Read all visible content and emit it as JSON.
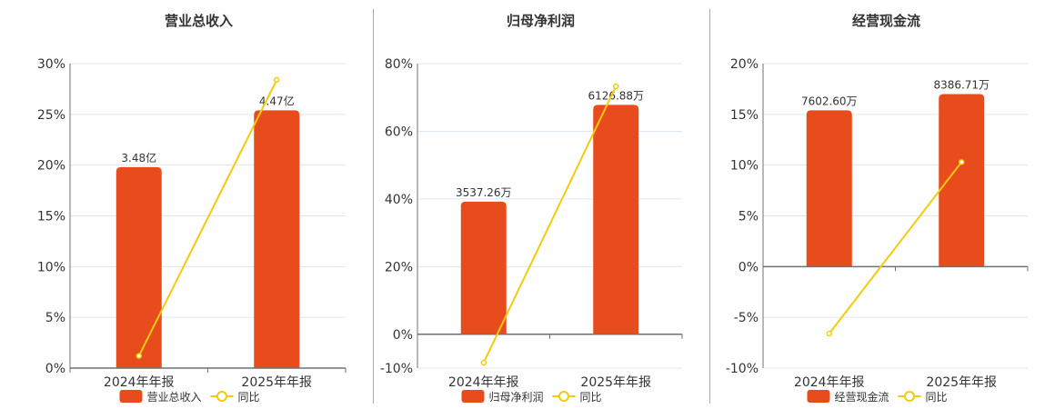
{
  "colors": {
    "bar": "#E84C1C",
    "line": "#F2CC0C",
    "grid": "#E0E6F1",
    "axis": "#6E7079",
    "divider": "#AAAAAA"
  },
  "chart_data": [
    {
      "type": "bar+line",
      "title": "营业总收入",
      "categories": [
        "2024年年报",
        "2025年年报"
      ],
      "ylim": [
        0,
        30
      ],
      "yticks": [
        0,
        5,
        10,
        15,
        20,
        25,
        30
      ],
      "ytick_labels": [
        "0%",
        "5%",
        "10%",
        "15%",
        "20%",
        "25%",
        "30%"
      ],
      "bar_series": {
        "name": "营业总收入",
        "labels": [
          "3.48亿",
          "4.47亿"
        ],
        "axis_values": [
          19.8,
          25.4
        ]
      },
      "line_series": {
        "name": "同比",
        "values": [
          1.2,
          28.4
        ]
      },
      "legend": "bottom",
      "grid": true
    },
    {
      "type": "bar+line",
      "title": "归母净利润",
      "categories": [
        "2024年年报",
        "2025年年报"
      ],
      "ylim": [
        -10,
        80
      ],
      "yticks": [
        -10,
        0,
        20,
        40,
        60,
        80
      ],
      "ytick_labels": [
        "-10%",
        "0%",
        "20%",
        "40%",
        "60%",
        "80%"
      ],
      "bar_series": {
        "name": "归母净利润",
        "labels": [
          "3537.26万",
          "6126.88万"
        ],
        "axis_values": [
          39.2,
          67.8
        ]
      },
      "line_series": {
        "name": "同比",
        "values": [
          -8.4,
          73.3
        ]
      },
      "legend": "bottom",
      "grid": true
    },
    {
      "type": "bar+line",
      "title": "经营现金流",
      "categories": [
        "2024年年报",
        "2025年年报"
      ],
      "ylim": [
        -10,
        20
      ],
      "yticks": [
        -10,
        -5,
        0,
        5,
        10,
        15,
        20
      ],
      "ytick_labels": [
        "-10%",
        "-5%",
        "0%",
        "5%",
        "10%",
        "15%",
        "20%"
      ],
      "bar_series": {
        "name": "经营现金流",
        "labels": [
          "7602.60万",
          "8386.71万"
        ],
        "axis_values": [
          15.4,
          17.0
        ]
      },
      "line_series": {
        "name": "同比",
        "values": [
          -6.6,
          10.3
        ]
      },
      "legend": "bottom",
      "grid": true
    }
  ]
}
